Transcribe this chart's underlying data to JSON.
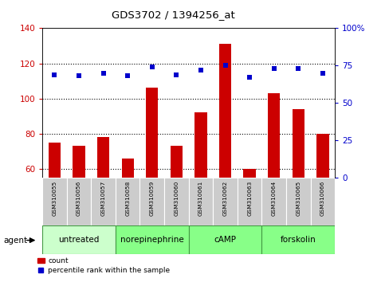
{
  "title": "GDS3702 / 1394256_at",
  "samples": [
    "GSM310055",
    "GSM310056",
    "GSM310057",
    "GSM310058",
    "GSM310059",
    "GSM310060",
    "GSM310061",
    "GSM310062",
    "GSM310063",
    "GSM310064",
    "GSM310065",
    "GSM310066"
  ],
  "bar_values": [
    75,
    73,
    78,
    66,
    106,
    73,
    92,
    131,
    60,
    103,
    94,
    80
  ],
  "dot_values_pct": [
    69,
    68,
    70,
    68,
    74,
    69,
    72,
    75,
    67,
    73,
    73,
    70
  ],
  "agents": [
    {
      "label": "untreated",
      "start": 0,
      "end": 3,
      "color": "#ccffcc"
    },
    {
      "label": "norepinephrine",
      "start": 3,
      "end": 6,
      "color": "#88ff88"
    },
    {
      "label": "cAMP",
      "start": 6,
      "end": 9,
      "color": "#88ff88"
    },
    {
      "label": "forskolin",
      "start": 9,
      "end": 12,
      "color": "#88ff88"
    }
  ],
  "ylim_left": [
    55,
    140
  ],
  "ylim_right": [
    0,
    100
  ],
  "yticks_left": [
    60,
    80,
    100,
    120,
    140
  ],
  "yticks_right": [
    0,
    25,
    50,
    75,
    100
  ],
  "bar_color": "#cc0000",
  "dot_color": "#0000cc",
  "grid_color": "black",
  "agent_label": "agent",
  "legend_count": "count",
  "legend_percentile": "percentile rank within the sample",
  "bg_gray": "#cccccc",
  "fig_width": 4.83,
  "fig_height": 3.54,
  "dpi": 100
}
